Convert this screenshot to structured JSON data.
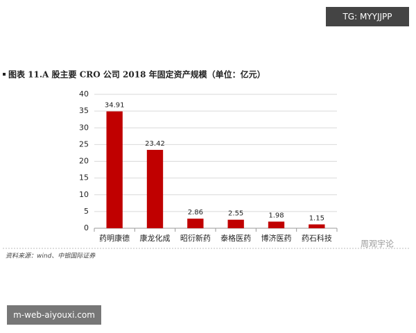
{
  "badge": "TG: MYYJJPP",
  "site": "m-web-aiyouxi.com",
  "watermark": "周观宇论",
  "chart_data": {
    "type": "bar",
    "title": "图表 11.A 股主要 CRO 公司 2018 年固定资产规模（单位：亿元）",
    "source": "资料来源：wind、中银国际证券",
    "categories": [
      "药明康德",
      "康龙化成",
      "昭衍新药",
      "泰格医药",
      "博济医药",
      "药石科技"
    ],
    "values": [
      34.91,
      23.42,
      2.86,
      2.55,
      1.98,
      1.15
    ],
    "color": "#c00000",
    "ylim": [
      0,
      40
    ],
    "yticks": [
      0,
      5,
      10,
      15,
      20,
      25,
      30,
      35,
      40
    ],
    "grid": true
  }
}
